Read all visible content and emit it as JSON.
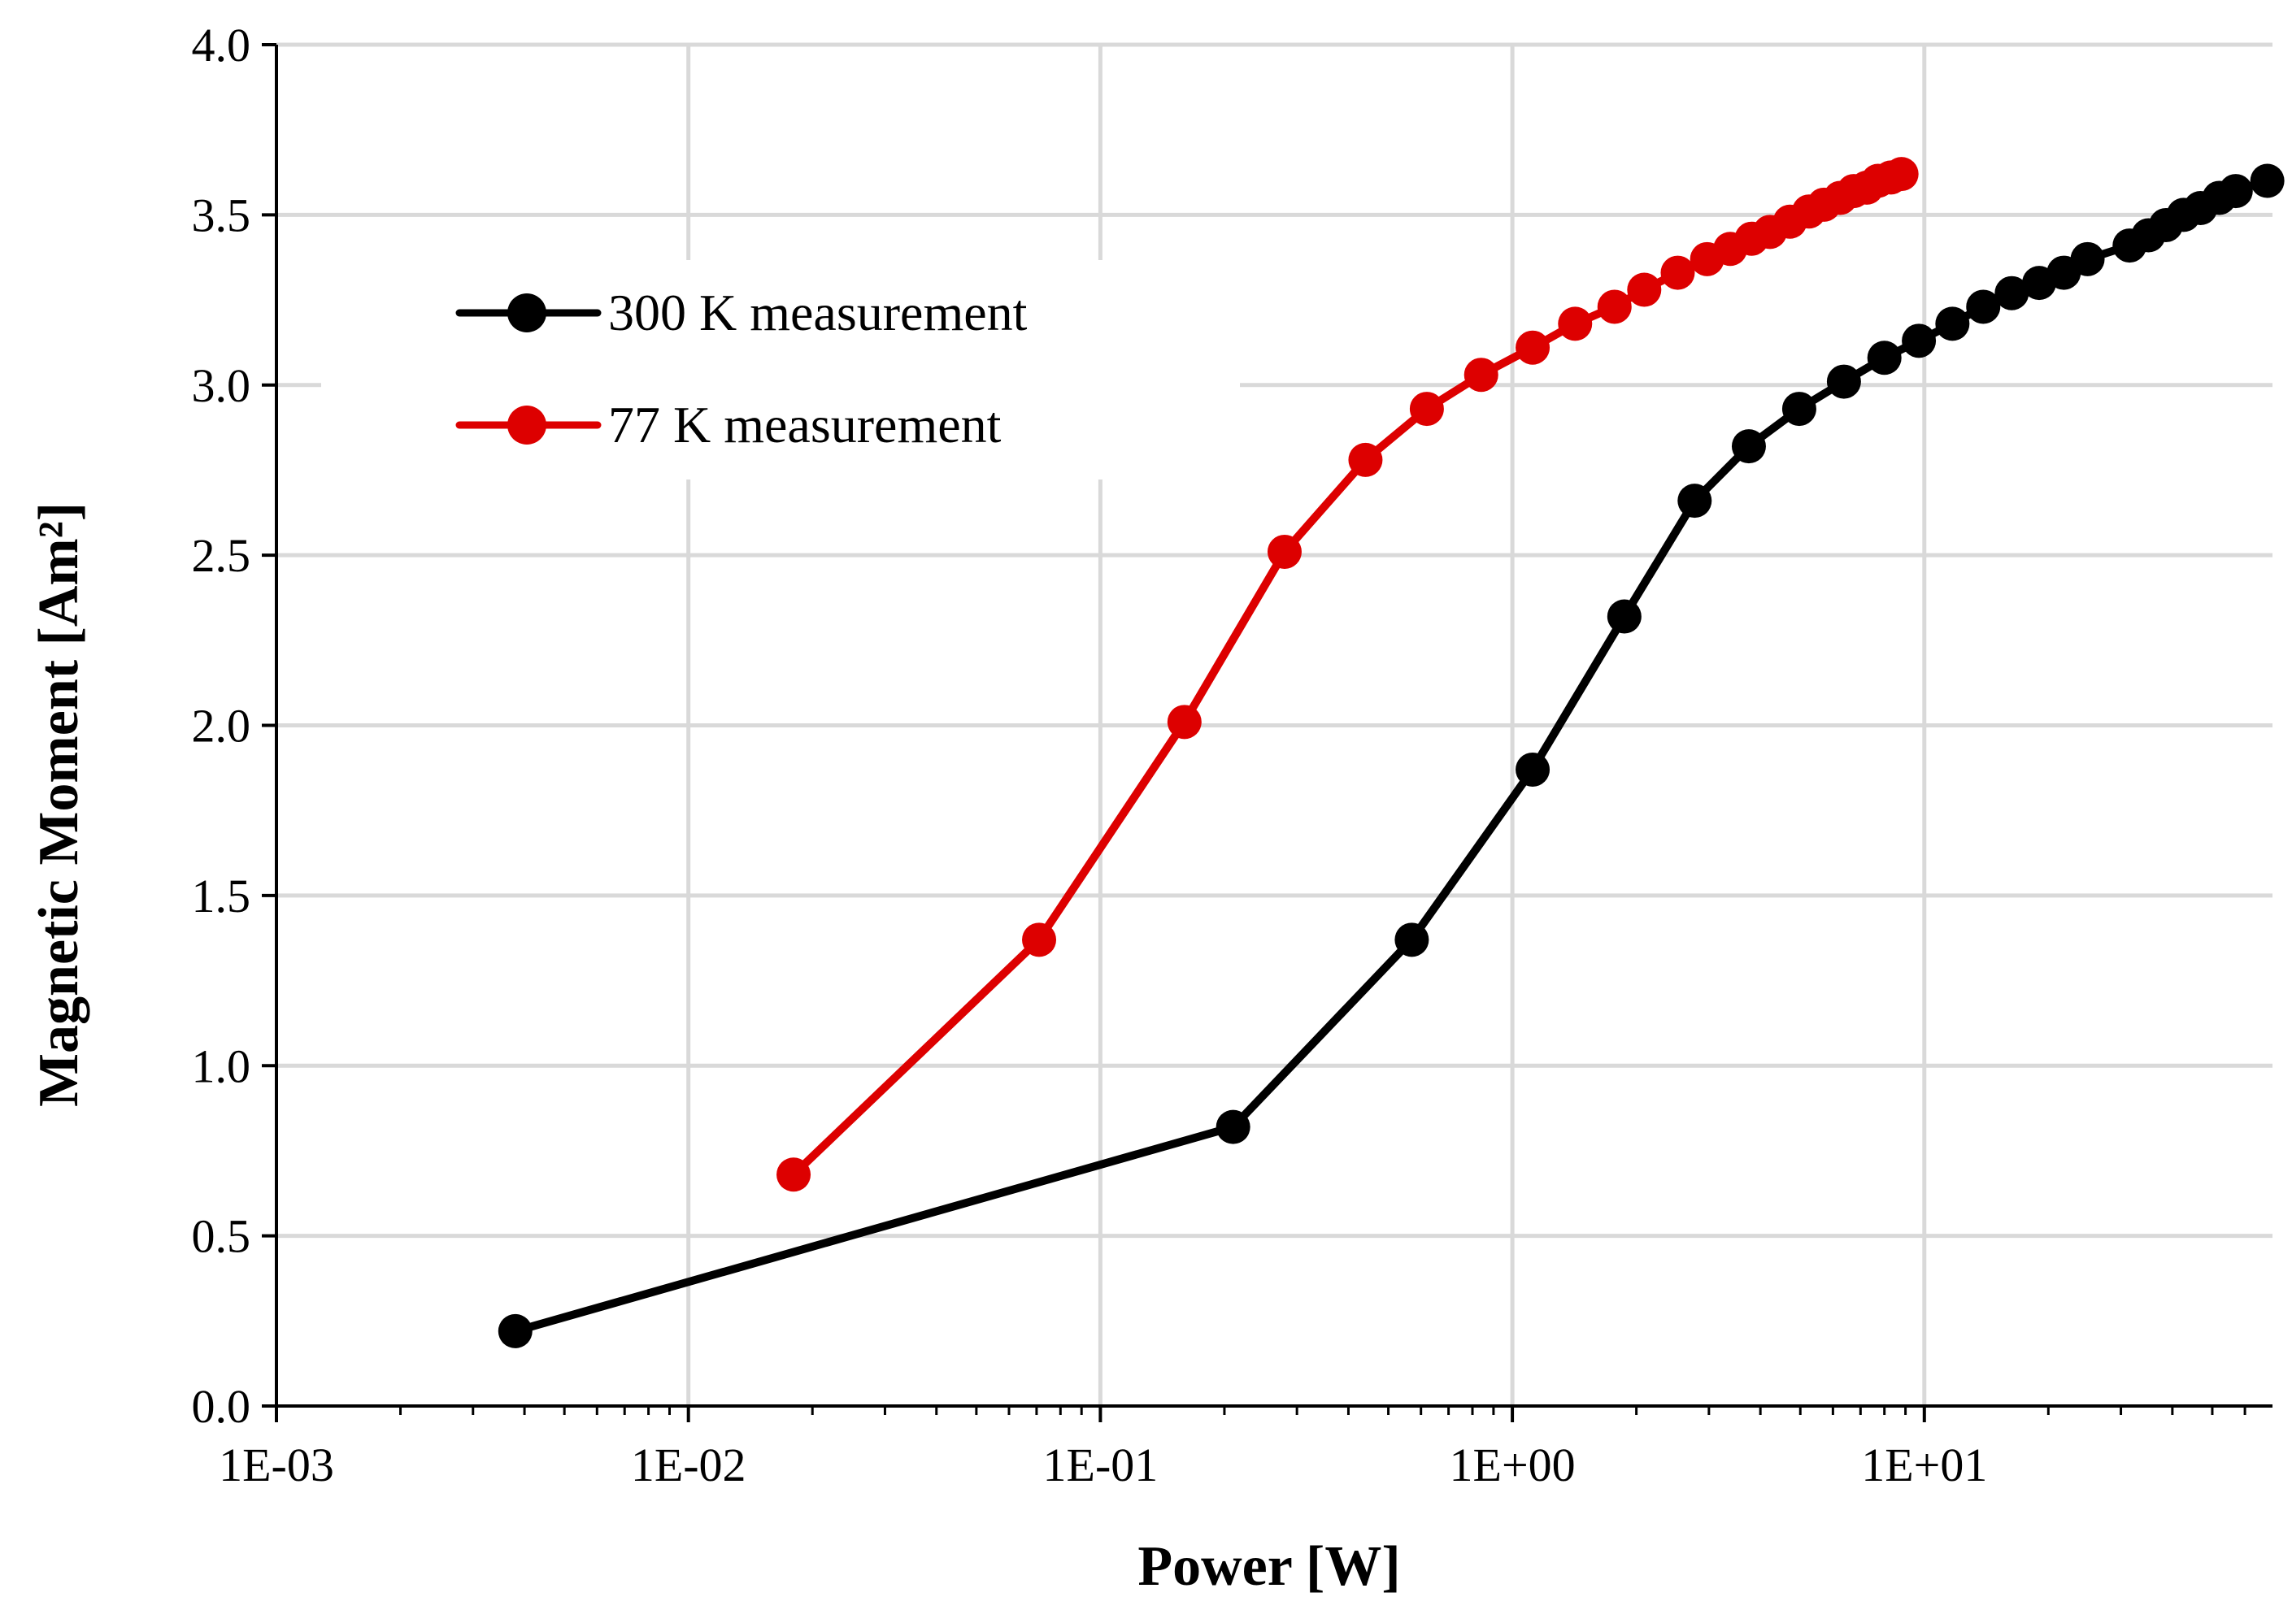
{
  "chart_data": {
    "type": "line",
    "title": "",
    "xlabel": "Power [W]",
    "ylabel": "Magnetic Moment [Am²]",
    "xscale": "log",
    "xlim": [
      0.001,
      70
    ],
    "ylim": [
      0,
      4
    ],
    "xticks": [
      {
        "value": 0.001,
        "label": "1E-03"
      },
      {
        "value": 0.01,
        "label": "1E-02"
      },
      {
        "value": 0.1,
        "label": "1E-01"
      },
      {
        "value": 1,
        "label": "1E+00"
      },
      {
        "value": 10,
        "label": "1E+01"
      }
    ],
    "yticks": [
      {
        "value": 0,
        "label": "0.0"
      },
      {
        "value": 0.5,
        "label": "0.5"
      },
      {
        "value": 1,
        "label": "1.0"
      },
      {
        "value": 1.5,
        "label": "1.5"
      },
      {
        "value": 2,
        "label": "2.0"
      },
      {
        "value": 2.5,
        "label": "2.5"
      },
      {
        "value": 3,
        "label": "3.0"
      },
      {
        "value": 3.5,
        "label": "3.5"
      },
      {
        "value": 4,
        "label": "4.0"
      }
    ],
    "grid": true,
    "legend_position": "top-left",
    "series": [
      {
        "name": "300 K measurement",
        "color": "#000000",
        "x": [
          0.0038,
          0.21,
          0.57,
          1.12,
          1.87,
          2.77,
          3.75,
          4.97,
          6.38,
          8.0,
          9.7,
          11.7,
          13.9,
          16.3,
          19.0,
          21.8,
          24.9,
          31.5,
          35.0,
          38.6,
          42.6,
          46.8,
          52.0,
          57.0,
          68.0
        ],
        "y": [
          0.22,
          0.82,
          1.37,
          1.87,
          2.32,
          2.66,
          2.82,
          2.93,
          3.01,
          3.08,
          3.13,
          3.18,
          3.23,
          3.27,
          3.3,
          3.33,
          3.37,
          3.41,
          3.44,
          3.47,
          3.5,
          3.52,
          3.55,
          3.57,
          3.6
        ]
      },
      {
        "name": "77 K measurement",
        "color": "#dd0000",
        "x": [
          0.018,
          0.071,
          0.16,
          0.28,
          0.44,
          0.62,
          0.84,
          1.12,
          1.42,
          1.77,
          2.09,
          2.52,
          2.97,
          3.38,
          3.81,
          4.22,
          4.72,
          5.25,
          5.71,
          6.25,
          6.74,
          7.25,
          7.72,
          8.3,
          8.8
        ],
        "y": [
          0.68,
          1.37,
          2.01,
          2.51,
          2.78,
          2.93,
          3.03,
          3.11,
          3.18,
          3.23,
          3.28,
          3.33,
          3.37,
          3.4,
          3.43,
          3.45,
          3.48,
          3.51,
          3.53,
          3.55,
          3.57,
          3.58,
          3.6,
          3.61,
          3.62
        ]
      }
    ]
  }
}
